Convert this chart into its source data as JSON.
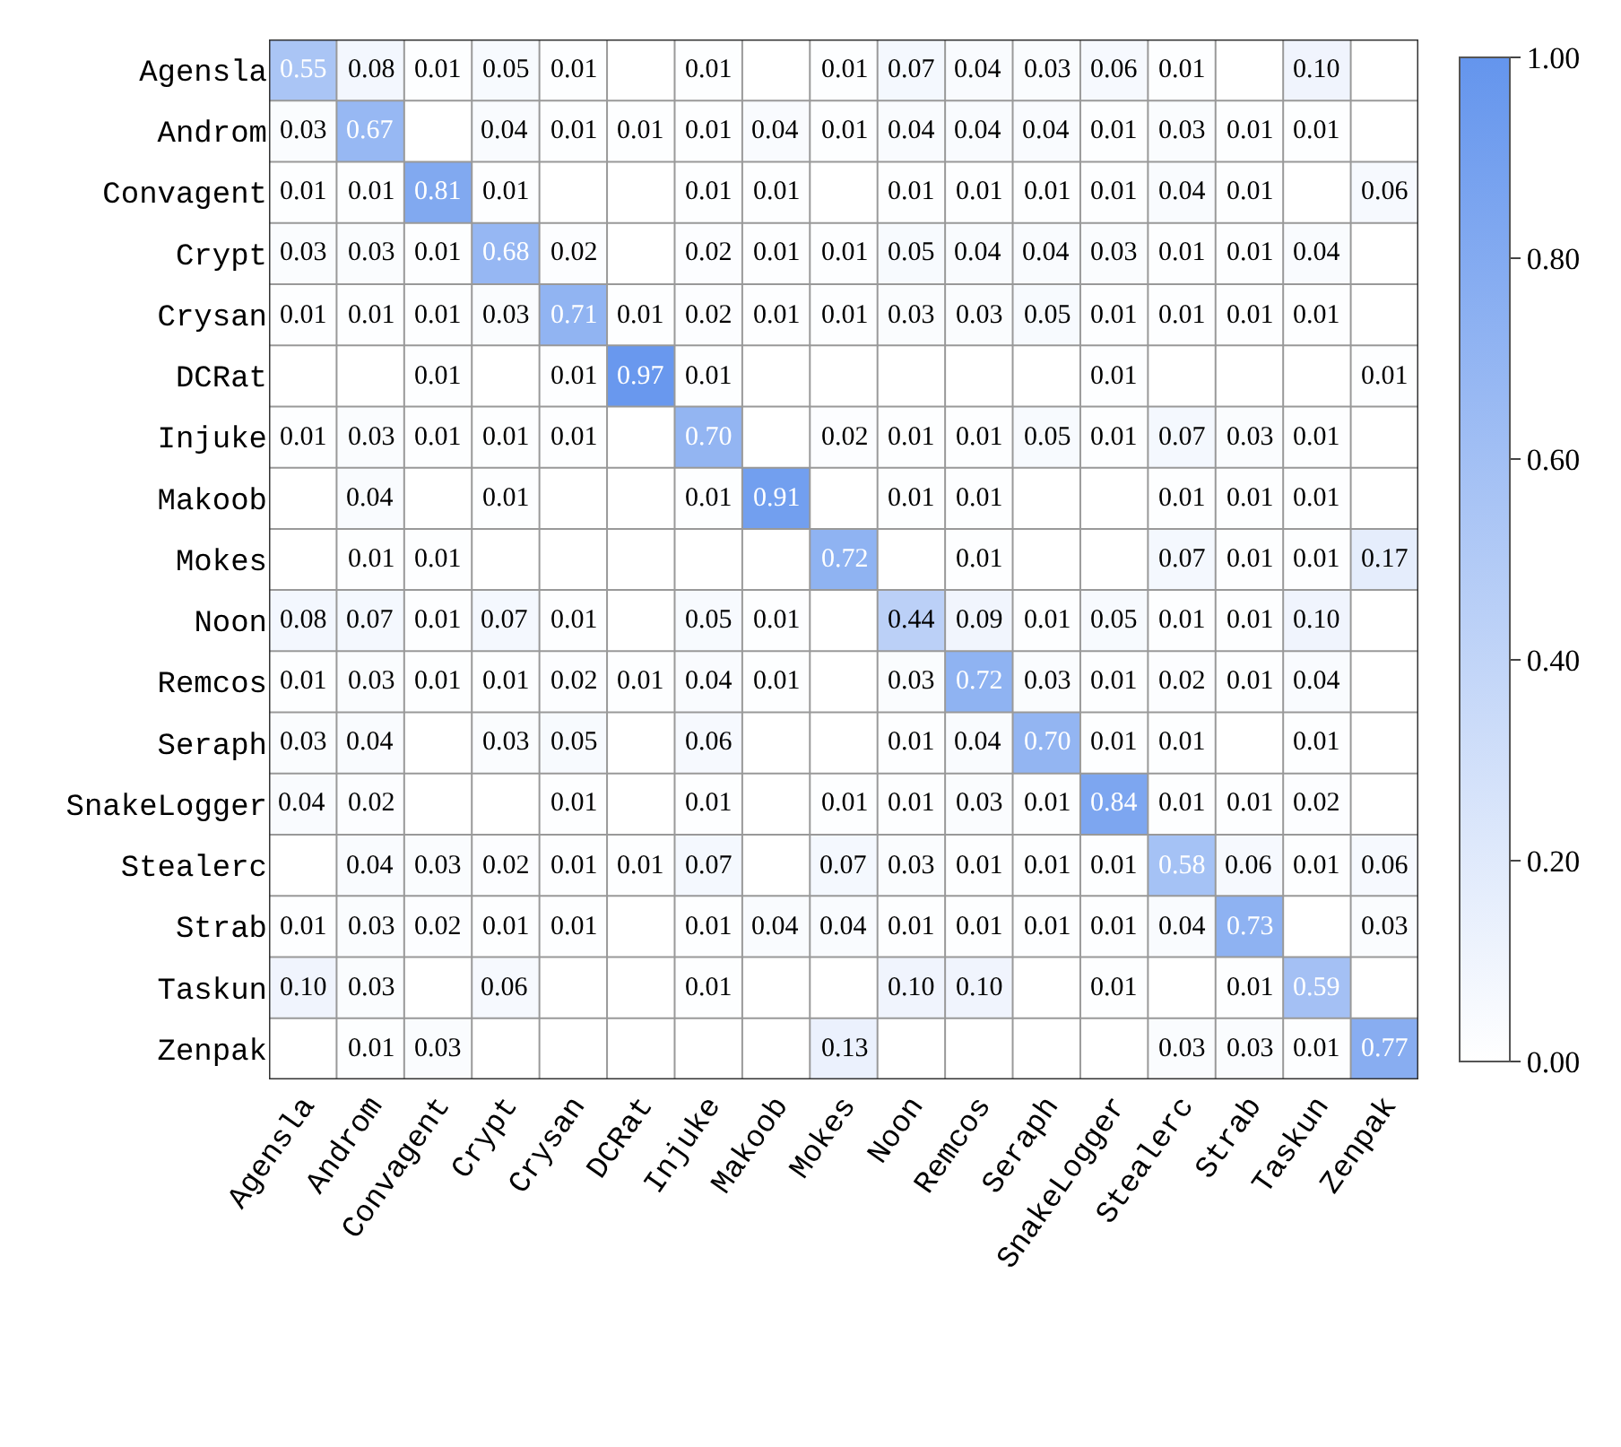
{
  "chart_data": {
    "type": "heatmap",
    "categories": [
      "Agensla",
      "Androm",
      "Convagent",
      "Crypt",
      "Crysan",
      "DCRat",
      "Injuke",
      "Makoob",
      "Mokes",
      "Noon",
      "Remcos",
      "Seraph",
      "SnakeLogger",
      "Stealerc",
      "Strab",
      "Taskun",
      "Zenpak"
    ],
    "y_categories": [
      "Agensla",
      "Androm",
      "Convagent",
      "Crypt",
      "Crysan",
      "DCRat",
      "Injuke",
      "Makoob",
      "Mokes",
      "Noon",
      "Remcos",
      "Seraph",
      "SnakeLogger",
      "Stealerc",
      "Strab",
      "Taskun",
      "Zenpak"
    ],
    "cells": [
      [
        0.55,
        0.08,
        0.01,
        0.05,
        0.01,
        null,
        0.01,
        null,
        0.01,
        0.07,
        0.04,
        0.03,
        0.06,
        0.01,
        null,
        0.1,
        null
      ],
      [
        0.03,
        0.67,
        null,
        0.04,
        0.01,
        0.01,
        0.01,
        0.04,
        0.01,
        0.04,
        0.04,
        0.04,
        0.01,
        0.03,
        0.01,
        0.01,
        null
      ],
      [
        0.01,
        0.01,
        0.81,
        0.01,
        null,
        null,
        0.01,
        0.01,
        null,
        0.01,
        0.01,
        0.01,
        0.01,
        0.04,
        0.01,
        null,
        0.06
      ],
      [
        0.03,
        0.03,
        0.01,
        0.68,
        0.02,
        null,
        0.02,
        0.01,
        0.01,
        0.05,
        0.04,
        0.04,
        0.03,
        0.01,
        0.01,
        0.04,
        null
      ],
      [
        0.01,
        0.01,
        0.01,
        0.03,
        0.71,
        0.01,
        0.02,
        0.01,
        0.01,
        0.03,
        0.03,
        0.05,
        0.01,
        0.01,
        0.01,
        0.01,
        null
      ],
      [
        null,
        null,
        0.01,
        null,
        0.01,
        0.97,
        0.01,
        null,
        null,
        null,
        null,
        null,
        0.01,
        null,
        null,
        null,
        0.01
      ],
      [
        0.01,
        0.03,
        0.01,
        0.01,
        0.01,
        null,
        0.7,
        null,
        0.02,
        0.01,
        0.01,
        0.05,
        0.01,
        0.07,
        0.03,
        0.01,
        null
      ],
      [
        null,
        0.04,
        null,
        0.01,
        null,
        null,
        0.01,
        0.91,
        null,
        0.01,
        0.01,
        null,
        null,
        0.01,
        0.01,
        0.01,
        null
      ],
      [
        null,
        0.01,
        0.01,
        null,
        null,
        null,
        null,
        null,
        0.72,
        null,
        0.01,
        null,
        null,
        0.07,
        0.01,
        0.01,
        0.17
      ],
      [
        0.08,
        0.07,
        0.01,
        0.07,
        0.01,
        null,
        0.05,
        0.01,
        null,
        0.44,
        0.09,
        0.01,
        0.05,
        0.01,
        0.01,
        0.1,
        null
      ],
      [
        0.01,
        0.03,
        0.01,
        0.01,
        0.02,
        0.01,
        0.04,
        0.01,
        null,
        0.03,
        0.72,
        0.03,
        0.01,
        0.02,
        0.01,
        0.04,
        null
      ],
      [
        0.03,
        0.04,
        null,
        0.03,
        0.05,
        null,
        0.06,
        null,
        null,
        0.01,
        0.04,
        0.7,
        0.01,
        0.01,
        null,
        0.01,
        null
      ],
      [
        0.04,
        0.02,
        null,
        null,
        0.01,
        null,
        0.01,
        null,
        0.01,
        0.01,
        0.03,
        0.01,
        0.84,
        0.01,
        0.01,
        0.02,
        null
      ],
      [
        null,
        0.04,
        0.03,
        0.02,
        0.01,
        0.01,
        0.07,
        null,
        0.07,
        0.03,
        0.01,
        0.01,
        0.01,
        0.58,
        0.06,
        0.01,
        0.06
      ],
      [
        0.01,
        0.03,
        0.02,
        0.01,
        0.01,
        null,
        0.01,
        0.04,
        0.04,
        0.01,
        0.01,
        0.01,
        0.01,
        0.04,
        0.73,
        null,
        0.03
      ],
      [
        0.1,
        0.03,
        null,
        0.06,
        null,
        null,
        0.01,
        null,
        null,
        0.1,
        0.1,
        null,
        0.01,
        null,
        0.01,
        0.59,
        null
      ],
      [
        null,
        0.01,
        0.03,
        null,
        null,
        null,
        null,
        null,
        0.13,
        null,
        null,
        null,
        null,
        0.03,
        0.03,
        0.01,
        0.77
      ]
    ],
    "clim": [
      0,
      1
    ],
    "cticks": [
      {
        "value": 0,
        "label": "0.00"
      },
      {
        "value": 0.2,
        "label": "0.20"
      },
      {
        "value": 0.4,
        "label": "0.40"
      },
      {
        "value": 0.6,
        "label": "0.60"
      },
      {
        "value": 0.8,
        "label": "0.80"
      },
      {
        "value": 1,
        "label": "1.00"
      }
    ],
    "colors": [
      "#ffffff",
      "#6495ed"
    ],
    "cell_labels": [
      [
        "0.55",
        "0.08",
        "0.01",
        "0.05",
        "0.01",
        null,
        "0.01",
        null,
        "0.01",
        "0.07",
        "0.04",
        "0.03",
        "0.06",
        "0.01",
        null,
        "0.10",
        null
      ],
      [
        "0.03",
        "0.67",
        null,
        "0.04",
        "0.01",
        "0.01",
        "0.01",
        "0.04",
        "0.01",
        "0.04",
        "0.04",
        "0.04",
        "0.01",
        "0.03",
        "0.01",
        "0.01",
        null
      ],
      [
        "0.01",
        "0.01",
        "0.81",
        "0.01",
        null,
        null,
        "0.01",
        "0.01",
        null,
        "0.01",
        "0.01",
        "0.01",
        "0.01",
        "0.04",
        "0.01",
        null,
        "0.06"
      ],
      [
        "0.03",
        "0.03",
        "0.01",
        "0.68",
        "0.02",
        null,
        "0.02",
        "0.01",
        "0.01",
        "0.05",
        "0.04",
        "0.04",
        "0.03",
        "0.01",
        "0.01",
        "0.04",
        null
      ],
      [
        "0.01",
        "0.01",
        "0.01",
        "0.03",
        "0.71",
        "0.01",
        "0.02",
        "0.01",
        "0.01",
        "0.03",
        "0.03",
        "0.05",
        "0.01",
        "0.01",
        "0.01",
        "0.01",
        null
      ],
      [
        null,
        null,
        "0.01",
        null,
        "0.01",
        "0.97",
        "0.01",
        null,
        null,
        null,
        null,
        null,
        "0.01",
        null,
        null,
        null,
        "0.01"
      ],
      [
        "0.01",
        "0.03",
        "0.01",
        "0.01",
        "0.01",
        null,
        "0.70",
        null,
        "0.02",
        "0.01",
        "0.01",
        "0.05",
        "0.01",
        "0.07",
        "0.03",
        "0.01",
        null
      ],
      [
        null,
        "0.04",
        null,
        "0.01",
        null,
        null,
        "0.01",
        "0.91",
        null,
        "0.01",
        "0.01",
        null,
        null,
        "0.01",
        "0.01",
        "0.01",
        null
      ],
      [
        null,
        "0.01",
        "0.01",
        null,
        null,
        null,
        null,
        null,
        "0.72",
        null,
        "0.01",
        null,
        null,
        "0.07",
        "0.01",
        "0.01",
        "0.17"
      ],
      [
        "0.08",
        "0.07",
        "0.01",
        "0.07",
        "0.01",
        null,
        "0.05",
        "0.01",
        null,
        "0.44",
        "0.09",
        "0.01",
        "0.05",
        "0.01",
        "0.01",
        "0.10",
        null
      ],
      [
        "0.01",
        "0.03",
        "0.01",
        "0.01",
        "0.02",
        "0.01",
        "0.04",
        "0.01",
        null,
        "0.03",
        "0.72",
        "0.03",
        "0.01",
        "0.02",
        "0.01",
        "0.04",
        null
      ],
      [
        "0.03",
        "0.04",
        null,
        "0.03",
        "0.05",
        null,
        "0.06",
        null,
        null,
        "0.01",
        "0.04",
        "0.70",
        "0.01",
        "0.01",
        null,
        "0.01",
        null
      ],
      [
        "0.04",
        "0.02",
        null,
        null,
        "0.01",
        null,
        "0.01",
        null,
        "0.01",
        "0.01",
        "0.03",
        "0.01",
        "0.84",
        "0.01",
        "0.01",
        "0.02",
        null
      ],
      [
        null,
        "0.04",
        "0.03",
        "0.02",
        "0.01",
        "0.01",
        "0.07",
        null,
        "0.07",
        "0.03",
        "0.01",
        "0.01",
        "0.01",
        "0.58",
        "0.06",
        "0.01",
        "0.06"
      ],
      [
        "0.01",
        "0.03",
        "0.02",
        "0.01",
        "0.01",
        null,
        "0.01",
        "0.04",
        "0.04",
        "0.01",
        "0.01",
        "0.01",
        "0.01",
        "0.04",
        "0.73",
        null,
        "0.03"
      ],
      [
        "0.10",
        "0.03",
        null,
        "0.06",
        null,
        null,
        "0.01",
        null,
        null,
        "0.10",
        "0.10",
        null,
        "0.01",
        null,
        "0.01",
        "0.59",
        null
      ],
      [
        null,
        "0.01",
        "0.03",
        null,
        null,
        null,
        null,
        null,
        "0.13",
        null,
        null,
        null,
        null,
        "0.03",
        "0.03",
        "0.01",
        "0.77"
      ]
    ]
  }
}
